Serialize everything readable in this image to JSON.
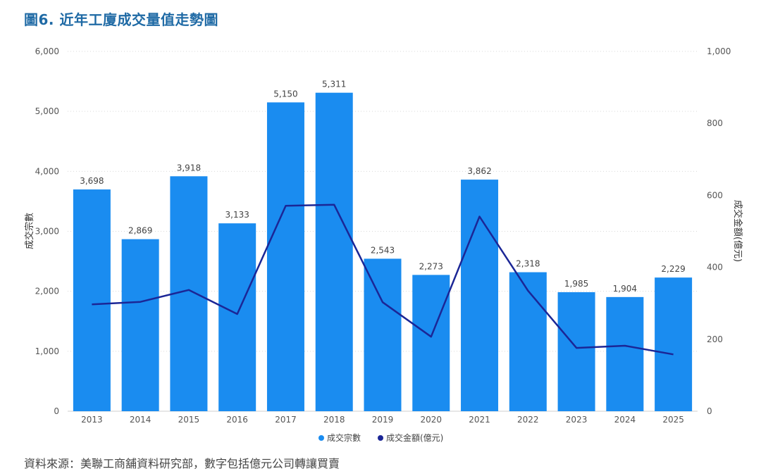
{
  "title": "圖6. 近年工廈成交量值走勢圖",
  "source": "資料來源：美聯工商舖資料研究部，數字包括億元公司轉讓買賣",
  "colors": {
    "bar": "#1a8cf0",
    "line": "#1b2696",
    "title": "#1f6aa5"
  },
  "chart_data": {
    "type": "bar",
    "categories": [
      "2013",
      "2014",
      "2015",
      "2016",
      "2017",
      "2018",
      "2019",
      "2020",
      "2021",
      "2022",
      "2023",
      "2024",
      "2025"
    ],
    "series": [
      {
        "name": "成交宗數",
        "type": "bar",
        "axis": "left",
        "values": [
          3698,
          2869,
          3918,
          3133,
          5150,
          5311,
          2543,
          2273,
          3862,
          2318,
          1985,
          1904,
          2229
        ],
        "labels": [
          "3,698",
          "2,869",
          "3,918",
          "3,133",
          "5,150",
          "5,311",
          "2,543",
          "2,273",
          "3,862",
          "2,318",
          "1,985",
          "1,904",
          "2,229"
        ]
      },
      {
        "name": "成交金額(億元)",
        "type": "line",
        "axis": "right",
        "values": [
          297,
          304,
          337,
          270,
          571,
          574,
          303,
          207,
          541,
          335,
          176,
          182,
          158
        ]
      }
    ],
    "ylabel": "成交宗數",
    "y2label": "成交金額(億元)",
    "ylim": [
      0,
      6000
    ],
    "y2lim": [
      0,
      1000
    ],
    "yticks": [
      "0",
      "1,000",
      "2,000",
      "3,000",
      "4,000",
      "5,000",
      "6,000"
    ],
    "y2ticks": [
      "0",
      "200",
      "400",
      "600",
      "800",
      "1,000"
    ],
    "grid": true,
    "legend": "bottom-center"
  }
}
